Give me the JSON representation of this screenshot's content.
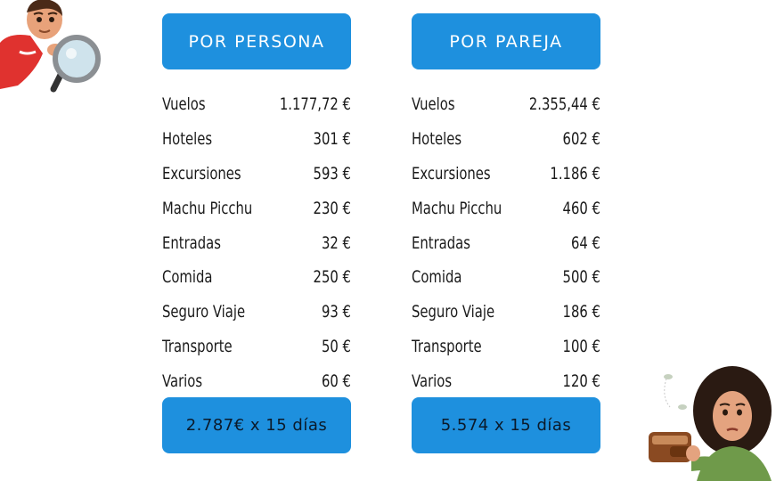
{
  "columns": [
    {
      "header": "POR PERSONA",
      "rows": [
        {
          "label": "Vuelos",
          "amount": "1.177,72 €"
        },
        {
          "label": "Hoteles",
          "amount": "301 €"
        },
        {
          "label": "Excursiones",
          "amount": "593 €"
        },
        {
          "label": "Machu Picchu",
          "amount": "230 €"
        },
        {
          "label": "Entradas",
          "amount": "32 €"
        },
        {
          "label": "Comida",
          "amount": "250 €"
        },
        {
          "label": "Seguro Viaje",
          "amount": "93 €"
        },
        {
          "label": "Transporte",
          "amount": "50 €"
        },
        {
          "label": "Varios",
          "amount": "60 €"
        }
      ],
      "total": "2.787€ x 15 días"
    },
    {
      "header": "POR PAREJA",
      "rows": [
        {
          "label": "Vuelos",
          "amount": "2.355,44 €"
        },
        {
          "label": "Hoteles",
          "amount": "602 €"
        },
        {
          "label": "Excursiones",
          "amount": "1.186 €"
        },
        {
          "label": "Machu Picchu",
          "amount": "460 €"
        },
        {
          "label": "Entradas",
          "amount": "64 €"
        },
        {
          "label": "Comida",
          "amount": "500 €"
        },
        {
          "label": "Seguro Viaje",
          "amount": "186 €"
        },
        {
          "label": "Transporte",
          "amount": "100 €"
        },
        {
          "label": "Varios",
          "amount": "120 €"
        }
      ],
      "total": "5.574 x 15 días"
    }
  ],
  "colors": {
    "accent": "#1e90de",
    "text": "#1a1a1a",
    "background": "#ffffff"
  }
}
